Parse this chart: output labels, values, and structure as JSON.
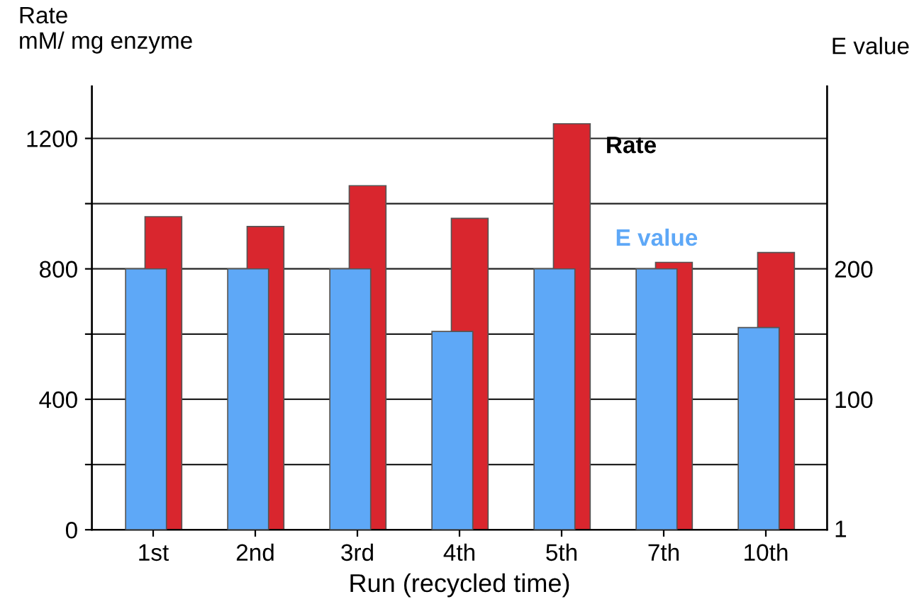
{
  "chart_data": {
    "type": "bar",
    "xlabel": "Run (recycled time)",
    "ylabel": "Rate\nmM/ mg enzyme",
    "y2label": "E value",
    "categories": [
      "1st",
      "2nd",
      "3rd",
      "4th",
      "5th",
      "7th",
      "10th"
    ],
    "series": [
      {
        "name": "Rate",
        "color": "#d9262e",
        "values": [
          960,
          930,
          1055,
          955,
          1245,
          820,
          850
        ]
      },
      {
        "name": "E value",
        "color": "#5ea8f7",
        "axis": "y2",
        "values": [
          200,
          200,
          200,
          152,
          200,
          200,
          155
        ]
      }
    ],
    "ylim": [
      0,
      1360
    ],
    "yticks": [
      0,
      {
        "value": 200,
        "label": null
      },
      400,
      {
        "value": 600,
        "label": null
      },
      800,
      {
        "value": 1000,
        "label": null
      },
      1200
    ],
    "y2lim": [
      0,
      340
    ],
    "y2ticks": [
      1,
      100,
      200
    ],
    "grid": "y",
    "legend": false
  }
}
